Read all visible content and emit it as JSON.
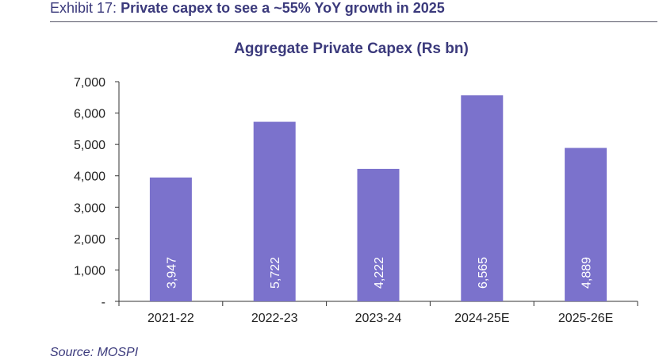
{
  "exhibit": {
    "number": "Exhibit 17:",
    "title": "Private capex to see a ~55% YoY growth in 2025"
  },
  "source": "Source: MOSPI",
  "colors": {
    "bar": "#7b72cc",
    "title": "#3b3a7c",
    "text": "#222222",
    "bar_label": "#ffffff"
  },
  "chart_data": {
    "type": "bar",
    "title": "Aggregate Private Capex (Rs bn)",
    "xlabel": "",
    "ylabel": "",
    "categories": [
      "2021-22",
      "2022-23",
      "2023-24",
      "2024-25E",
      "2025-26E"
    ],
    "values": [
      3947,
      5722,
      4222,
      6565,
      4889
    ],
    "value_labels": [
      "3,947",
      "5,722",
      "4,222",
      "6,565",
      "4,889"
    ],
    "ylim": [
      0,
      7000
    ],
    "yticks": [
      0,
      1000,
      2000,
      3000,
      4000,
      5000,
      6000,
      7000
    ],
    "ytick_labels": [
      "-",
      "1,000",
      "2,000",
      "3,000",
      "4,000",
      "5,000",
      "6,000",
      "7,000"
    ],
    "grid": false,
    "legend": "none"
  }
}
